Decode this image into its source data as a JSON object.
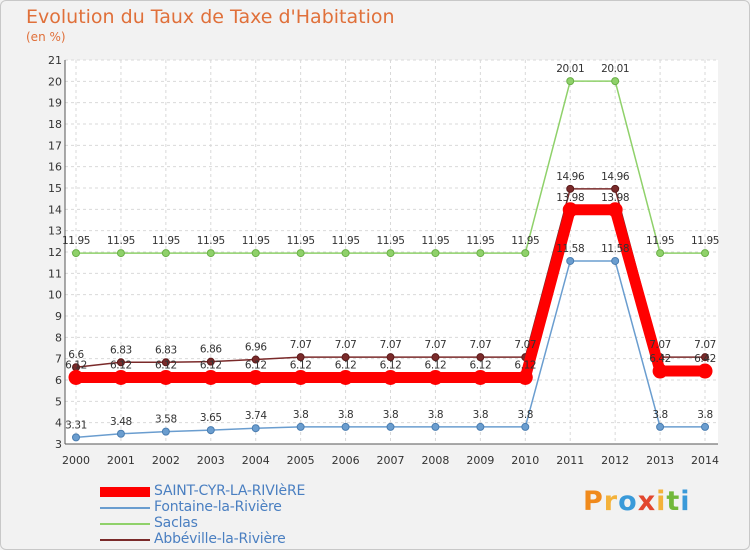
{
  "title": "Evolution du Taux de Taxe d'Habitation",
  "subtitle": "(en %)",
  "logo": {
    "text": "Proxiti",
    "letters": [
      {
        "ch": "P",
        "color": "#f08a1c"
      },
      {
        "ch": "r",
        "color": "#f4b23a"
      },
      {
        "ch": "o",
        "color": "#3a9ad9"
      },
      {
        "ch": "x",
        "color": "#e2472f"
      },
      {
        "ch": "i",
        "color": "#f4b23a"
      },
      {
        "ch": "t",
        "color": "#72b83a"
      },
      {
        "ch": "i",
        "color": "#3a9ad9"
      }
    ]
  },
  "chart_data": {
    "type": "line",
    "x": [
      "2000",
      "2001",
      "2002",
      "2003",
      "2004",
      "2005",
      "2006",
      "2007",
      "2008",
      "2009",
      "2010",
      "2011",
      "2012",
      "2013",
      "2014"
    ],
    "ylim": [
      3,
      21
    ],
    "yticks": [
      3,
      4,
      5,
      6,
      7,
      8,
      9,
      10,
      11,
      12,
      13,
      14,
      15,
      16,
      17,
      18,
      19,
      20,
      21
    ],
    "grid": true,
    "legend_position": "bottom-left",
    "series": [
      {
        "name": "SAINT-CYR-LA-RIVIèRE",
        "color": "#ff0000",
        "values": [
          6.12,
          6.12,
          6.12,
          6.12,
          6.12,
          6.12,
          6.12,
          6.12,
          6.12,
          6.12,
          6.12,
          13.98,
          13.98,
          6.42,
          6.42
        ],
        "labels": [
          "6.12",
          "6.12",
          "6.12",
          "6.12",
          "6.12",
          "6.12",
          "6.12",
          "6.12",
          "6.12",
          "6.12",
          "6.12",
          "13.98",
          "13.98",
          "6.42",
          "6.42"
        ]
      },
      {
        "name": "Fontaine-la-Rivière",
        "color": "#6a9dcf",
        "values": [
          3.31,
          3.48,
          3.58,
          3.65,
          3.74,
          3.8,
          3.8,
          3.8,
          3.8,
          3.8,
          3.8,
          11.58,
          11.58,
          3.8,
          3.8
        ],
        "labels": [
          "3.31",
          "3.48",
          "3.58",
          "3.65",
          "3.74",
          "3.8",
          "3.8",
          "3.8",
          "3.8",
          "3.8",
          "3.8",
          "11.58",
          "11.58",
          "3.8",
          "3.8"
        ]
      },
      {
        "name": "Saclas",
        "color": "#8fd16a",
        "values": [
          11.95,
          11.95,
          11.95,
          11.95,
          11.95,
          11.95,
          11.95,
          11.95,
          11.95,
          11.95,
          11.95,
          20.01,
          20.01,
          11.95,
          11.95
        ],
        "labels": [
          "11.95",
          "11.95",
          "11.95",
          "11.95",
          "11.95",
          "11.95",
          "11.95",
          "11.95",
          "11.95",
          "11.95",
          "11.95",
          "20.01",
          "20.01",
          "11.95",
          "11.95"
        ]
      },
      {
        "name": "Abbéville-la-Rivière",
        "color": "#7a2a2a",
        "values": [
          6.6,
          6.83,
          6.83,
          6.86,
          6.96,
          7.07,
          7.07,
          7.07,
          7.07,
          7.07,
          7.07,
          14.96,
          14.96,
          7.07,
          7.07
        ],
        "labels": [
          "6.6",
          "6.83",
          "6.83",
          "6.86",
          "6.96",
          "7.07",
          "7.07",
          "7.07",
          "7.07",
          "7.07",
          "7.07",
          "14.96",
          "14.96",
          "7.07",
          "7.07"
        ]
      }
    ]
  }
}
